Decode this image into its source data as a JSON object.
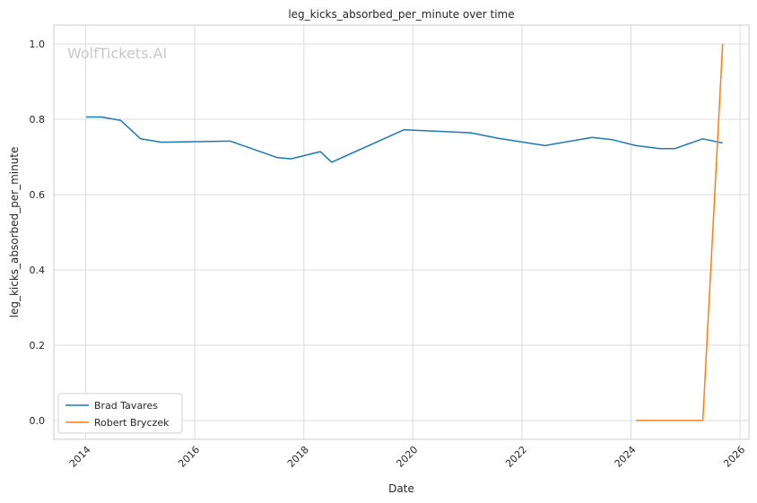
{
  "chart_data": {
    "type": "line",
    "title": "leg_kicks_absorbed_per_minute over time",
    "xlabel": "Date",
    "ylabel": "leg_kicks_absorbed_per_minute",
    "watermark": "WolfTickets.AI",
    "x_ticks": [
      "2014",
      "2016",
      "2018",
      "2020",
      "2022",
      "2024",
      "2026"
    ],
    "y_ticks": [
      "0.0",
      "0.2",
      "0.4",
      "0.6",
      "0.8",
      "1.0"
    ],
    "xlim": [
      "2013-06-01",
      "2026-03-01"
    ],
    "ylim": [
      -0.05,
      1.05
    ],
    "grid": true,
    "legend_position": "lower-left",
    "series": [
      {
        "name": "Brad Tavares",
        "color": "#1f77b4",
        "points": [
          [
            "2014-01-04",
            0.806
          ],
          [
            "2014-04-16",
            0.806
          ],
          [
            "2014-08-23",
            0.797
          ],
          [
            "2015-01-03",
            0.748
          ],
          [
            "2015-05-23",
            0.739
          ],
          [
            "2016-08-27",
            0.742
          ],
          [
            "2017-07-08",
            0.698
          ],
          [
            "2017-10-07",
            0.695
          ],
          [
            "2018-04-21",
            0.714
          ],
          [
            "2018-07-06",
            0.686
          ],
          [
            "2019-11-02",
            0.772
          ],
          [
            "2021-01-23",
            0.764
          ],
          [
            "2021-07-17",
            0.75
          ],
          [
            "2022-06-04",
            0.73
          ],
          [
            "2023-04-15",
            0.752
          ],
          [
            "2023-08-26",
            0.746
          ],
          [
            "2024-02-03",
            0.73
          ],
          [
            "2024-07-13",
            0.722
          ],
          [
            "2024-10-19",
            0.722
          ],
          [
            "2025-04-26",
            0.748
          ],
          [
            "2025-09-06",
            0.737
          ]
        ]
      },
      {
        "name": "Robert Bryczek",
        "color": "#ff7f0e",
        "points": [
          [
            "2024-02-03",
            0.0
          ],
          [
            "2025-04-26",
            0.0
          ],
          [
            "2025-09-06",
            1.0
          ]
        ]
      }
    ]
  }
}
